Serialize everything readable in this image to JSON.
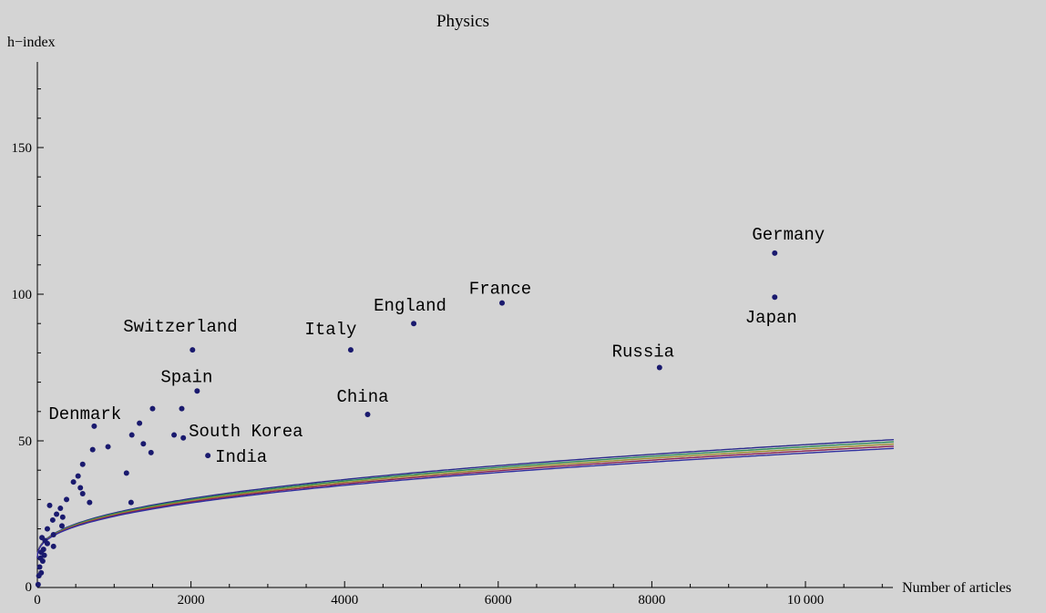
{
  "chart_data": {
    "type": "scatter",
    "title": "Physics",
    "xlabel": "Number of articles",
    "ylabel": "h−index",
    "xlim": [
      0,
      11200
    ],
    "ylim": [
      0,
      178
    ],
    "x_ticks": [
      0,
      2000,
      4000,
      6000,
      8000,
      10000
    ],
    "x_tick_labels": [
      "0",
      "2000",
      "4000",
      "6000",
      "8000",
      "10 000"
    ],
    "y_ticks": [
      50,
      100,
      150
    ],
    "y_tick_labels": [
      "50",
      "100",
      "150"
    ],
    "grid": false,
    "point_color": "#1a1a6e",
    "curve_colors": [
      "#2b2b8c",
      "#2e8b57",
      "#9b8b2e",
      "#8b2252",
      "#3030a0"
    ],
    "curve_coefficients": [
      1.08,
      1.06,
      1.04,
      1.02,
      1.0
    ],
    "curve_model": "h = a * 0.9 * N^0.4 + 10",
    "points": [
      {
        "x": 9600,
        "y": 114,
        "label": "Germany"
      },
      {
        "x": 9600,
        "y": 99,
        "label": "Japan"
      },
      {
        "x": 6050,
        "y": 97,
        "label": "France"
      },
      {
        "x": 4900,
        "y": 90,
        "label": "England"
      },
      {
        "x": 4080,
        "y": 81,
        "label": "Italy"
      },
      {
        "x": 2020,
        "y": 81,
        "label": "Switzerland"
      },
      {
        "x": 2080,
        "y": 67,
        "label": "Spain"
      },
      {
        "x": 8100,
        "y": 75,
        "label": "Russia"
      },
      {
        "x": 4300,
        "y": 59,
        "label": "China"
      },
      {
        "x": 740,
        "y": 55,
        "label": "Denmark"
      },
      {
        "x": 1900,
        "y": 51,
        "label": "South Korea"
      },
      {
        "x": 2220,
        "y": 45,
        "label": "India"
      },
      {
        "x": 1500,
        "y": 61,
        "label": ""
      },
      {
        "x": 1880,
        "y": 61,
        "label": ""
      },
      {
        "x": 1330,
        "y": 56,
        "label": ""
      },
      {
        "x": 1230,
        "y": 52,
        "label": ""
      },
      {
        "x": 1780,
        "y": 52,
        "label": ""
      },
      {
        "x": 1380,
        "y": 49,
        "label": ""
      },
      {
        "x": 920,
        "y": 48,
        "label": ""
      },
      {
        "x": 720,
        "y": 47,
        "label": ""
      },
      {
        "x": 1480,
        "y": 46,
        "label": ""
      },
      {
        "x": 590,
        "y": 42,
        "label": ""
      },
      {
        "x": 1160,
        "y": 39,
        "label": ""
      },
      {
        "x": 530,
        "y": 38,
        "label": ""
      },
      {
        "x": 470,
        "y": 36,
        "label": ""
      },
      {
        "x": 560,
        "y": 34,
        "label": ""
      },
      {
        "x": 590,
        "y": 32,
        "label": ""
      },
      {
        "x": 380,
        "y": 30,
        "label": ""
      },
      {
        "x": 680,
        "y": 29,
        "label": ""
      },
      {
        "x": 1220,
        "y": 29,
        "label": ""
      },
      {
        "x": 160,
        "y": 28,
        "label": ""
      },
      {
        "x": 300,
        "y": 27,
        "label": ""
      },
      {
        "x": 250,
        "y": 25,
        "label": ""
      },
      {
        "x": 330,
        "y": 24,
        "label": ""
      },
      {
        "x": 200,
        "y": 23,
        "label": ""
      },
      {
        "x": 320,
        "y": 21,
        "label": ""
      },
      {
        "x": 130,
        "y": 20,
        "label": ""
      },
      {
        "x": 210,
        "y": 18,
        "label": ""
      },
      {
        "x": 60,
        "y": 17,
        "label": ""
      },
      {
        "x": 100,
        "y": 16,
        "label": ""
      },
      {
        "x": 130,
        "y": 15,
        "label": ""
      },
      {
        "x": 210,
        "y": 14,
        "label": ""
      },
      {
        "x": 80,
        "y": 13,
        "label": ""
      },
      {
        "x": 50,
        "y": 12,
        "label": ""
      },
      {
        "x": 90,
        "y": 11,
        "label": ""
      },
      {
        "x": 40,
        "y": 10,
        "label": ""
      },
      {
        "x": 70,
        "y": 9,
        "label": ""
      },
      {
        "x": 30,
        "y": 7,
        "label": ""
      },
      {
        "x": 50,
        "y": 5,
        "label": ""
      },
      {
        "x": 20,
        "y": 4,
        "label": ""
      },
      {
        "x": 10,
        "y": 1,
        "label": ""
      }
    ]
  }
}
